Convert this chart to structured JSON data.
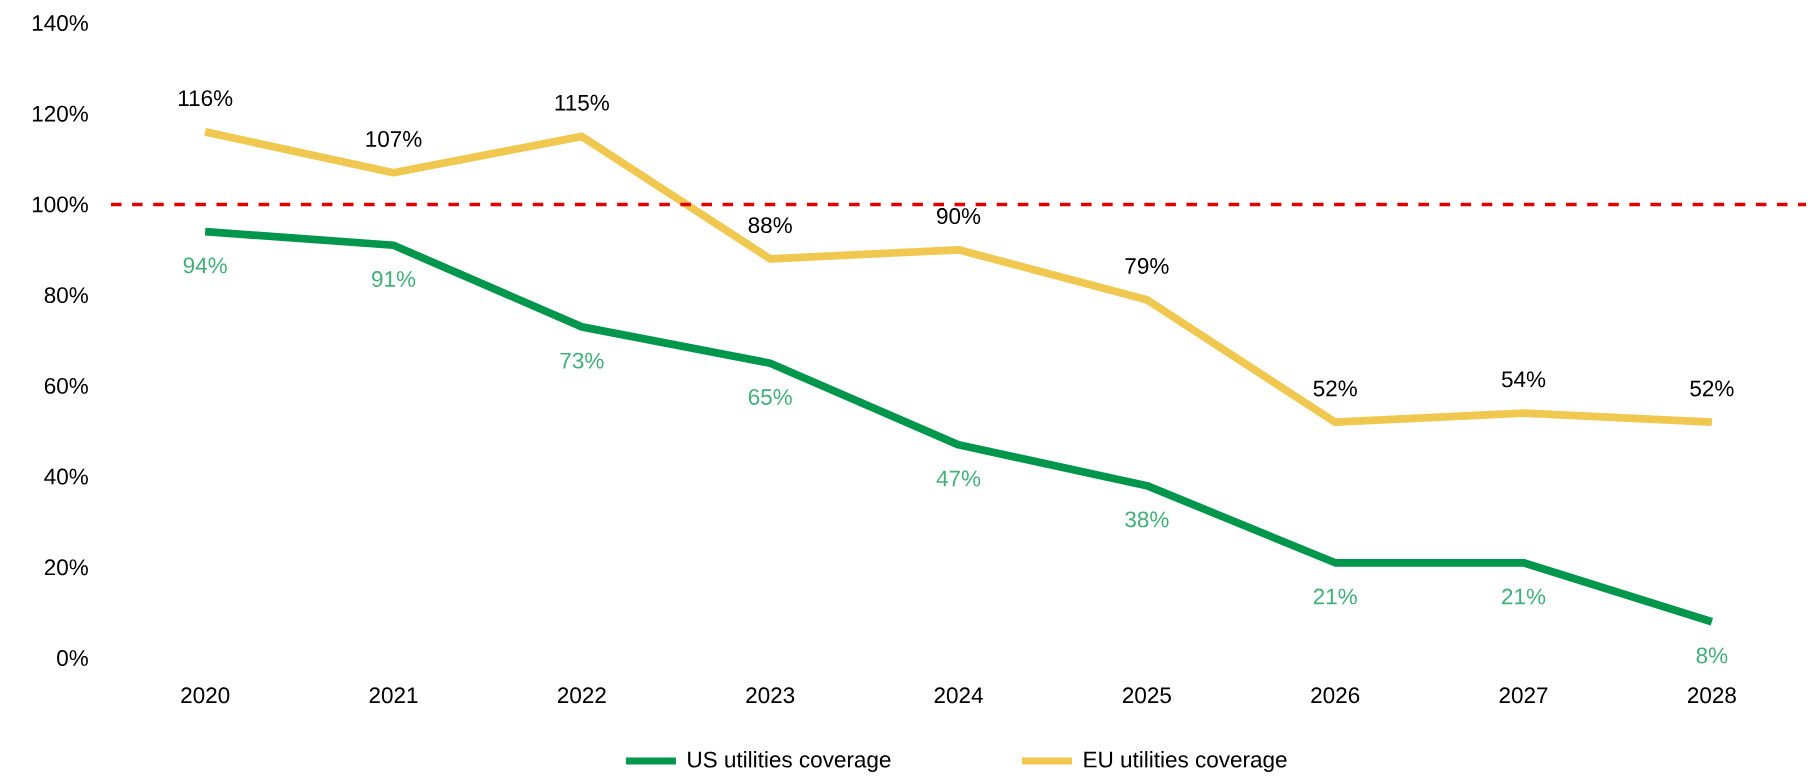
{
  "chart_data": {
    "type": "line",
    "categories": [
      "2020",
      "2021",
      "2022",
      "2023",
      "2024",
      "2025",
      "2026",
      "2027",
      "2028"
    ],
    "series": [
      {
        "name": "US utilities coverage",
        "color": "#00964b",
        "values": [
          94,
          91,
          73,
          65,
          47,
          38,
          21,
          21,
          8
        ],
        "value_labels": [
          "94%",
          "91%",
          "73%",
          "65%",
          "47%",
          "38%",
          "21%",
          "21%",
          "8%"
        ]
      },
      {
        "name": "EU utilities coverage",
        "color": "#f0c850",
        "values": [
          116,
          107,
          115,
          88,
          90,
          79,
          52,
          54,
          52
        ],
        "value_labels": [
          "116%",
          "107%",
          "115%",
          "88%",
          "90%",
          "79%",
          "52%",
          "54%",
          "52%"
        ]
      }
    ],
    "ylim": [
      0,
      140
    ],
    "yticks": [
      {
        "value": 0,
        "label": "0%"
      },
      {
        "value": 20,
        "label": "20%"
      },
      {
        "value": 40,
        "label": "40%"
      },
      {
        "value": 60,
        "label": "60%"
      },
      {
        "value": 80,
        "label": "80%"
      },
      {
        "value": 100,
        "label": "100%"
      },
      {
        "value": 120,
        "label": "120%"
      },
      {
        "value": 140,
        "label": "140%"
      }
    ],
    "ref_lines": [
      {
        "axis": "y",
        "value": 100,
        "color": "#e00000",
        "line_style": "dashed"
      }
    ],
    "grid": false,
    "legend": "bottom",
    "marker": "none",
    "line_style": "solid"
  }
}
